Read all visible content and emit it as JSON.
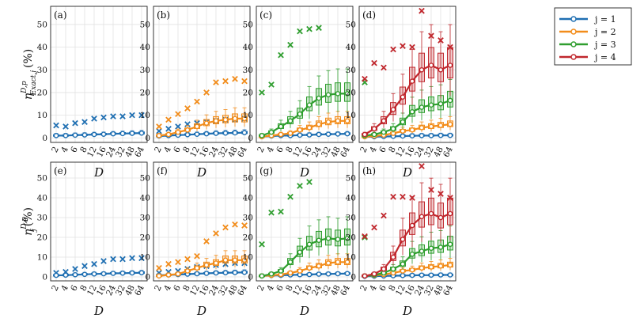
{
  "chart_data": {
    "type": "line",
    "ylim": [
      -2,
      58
    ],
    "yticks": [
      0,
      10,
      20,
      30,
      40,
      50
    ],
    "x": [
      "2",
      "4",
      "6",
      "8",
      "12",
      "16",
      "24",
      "32",
      "48",
      "64"
    ],
    "xlabel": "D",
    "colors": {
      "j1": "#1f6fb2",
      "j2": "#f28c1a",
      "j3": "#2f9e2f",
      "j4": "#c0272d"
    },
    "legend": [
      "j = 1",
      "j = 2",
      "j = 3",
      "j = 4"
    ],
    "rows": [
      {
        "ylabel": {
          "symbol": "η",
          "sup": "D,p",
          "sub": "Exact,j",
          "unit": "(%)"
        },
        "panels": [
          {
            "label": "(a)",
            "series": [
              {
                "key": "j1",
                "values": [
                  1.0,
                  1.0,
                  1.2,
                  1.3,
                  1.5,
                  1.6,
                  1.8,
                  1.9,
                  2.0,
                  2.1
                ],
                "outliers": [
                  5.5,
                  5.0,
                  6.5,
                  7.0,
                  8.5,
                  9.0,
                  9.5,
                  9.5,
                  10.0,
                  10.0
                ]
              }
            ]
          },
          {
            "label": "(b)",
            "series": [
              {
                "key": "j1",
                "values": [
                  0.8,
                  1.0,
                  1.2,
                  1.4,
                  1.6,
                  1.8,
                  2.0,
                  2.1,
                  2.2,
                  2.3
                ],
                "outliers": [
                  3.0,
                  4.0,
                  5.0,
                  6.0,
                  6.5,
                  7.0,
                  7.5,
                  8.0,
                  8.0,
                  8.5
                ]
              },
              {
                "key": "j2",
                "values": [
                  1.0,
                  1.5,
                  2.5,
                  3.5,
                  5.0,
                  6.5,
                  7.5,
                  8.0,
                  8.5,
                  8.5
                ],
                "outliers": [
                  5.0,
                  8.0,
                  10.5,
                  13.0,
                  16.0,
                  20.0,
                  24.5,
                  25.0,
                  26.0,
                  25.0
                ]
              }
            ]
          },
          {
            "label": "(c)",
            "series": [
              {
                "key": "j1",
                "values": [
                  0.5,
                  0.8,
                  1.0,
                  1.0,
                  1.2,
                  1.3,
                  1.5,
                  1.6,
                  1.7,
                  1.8
                ],
                "outliers": []
              },
              {
                "key": "j2",
                "values": [
                  0.5,
                  1.0,
                  1.5,
                  2.0,
                  3.5,
                  4.5,
                  6.0,
                  7.0,
                  7.5,
                  7.5
                ],
                "outliers": []
              },
              {
                "key": "j3",
                "values": [
                  1.0,
                  2.5,
                  5.0,
                  7.5,
                  10.5,
                  14.5,
                  17.5,
                  19.0,
                  19.5,
                  19.5
                ],
                "outliers": [
                  20.0,
                  23.5,
                  36.5,
                  41.0,
                  47.0,
                  48.0,
                  48.5
                ]
              }
            ]
          },
          {
            "label": "(d)",
            "series": [
              {
                "key": "j1",
                "values": [
                  0.5,
                  0.5,
                  0.6,
                  0.7,
                  0.8,
                  0.9,
                  1.0,
                  1.0,
                  1.1,
                  1.1
                ],
                "outliers": []
              },
              {
                "key": "j2",
                "values": [
                  0.5,
                  0.8,
                  1.2,
                  2.0,
                  3.0,
                  3.5,
                  4.5,
                  5.0,
                  5.5,
                  6.0
                ],
                "outliers": []
              },
              {
                "key": "j3",
                "values": [
                  1.0,
                  1.5,
                  2.5,
                  4.0,
                  7.0,
                  11.5,
                  13.5,
                  14.5,
                  15.0,
                  16.5
                ],
                "outliers": [
                  24.5
                ]
              },
              {
                "key": "j4",
                "values": [
                  1.5,
                  4.0,
                  7.5,
                  12.5,
                  18.0,
                  25.0,
                  30.0,
                  32.0,
                  30.0,
                  32.0
                ],
                "outliers": [
                  26.0,
                  33.0,
                  31.0,
                  39.0,
                  40.5,
                  40.0,
                  56.0,
                  45.0,
                  43.0,
                  40.0
                ]
              }
            ]
          }
        ]
      },
      {
        "ylabel": {
          "symbol": "η",
          "sup": "D,p",
          "sub": "j",
          "unit": "(%)"
        },
        "panels": [
          {
            "label": "(e)",
            "series": [
              {
                "key": "j1",
                "values": [
                  0.8,
                  0.9,
                  1.1,
                  1.3,
                  1.5,
                  1.6,
                  1.8,
                  1.9,
                  2.0,
                  2.1
                ],
                "outliers": [
                  2.0,
                  2.5,
                  4.0,
                  5.5,
                  6.5,
                  8.0,
                  9.0,
                  9.0,
                  9.5,
                  9.5
                ]
              }
            ]
          },
          {
            "label": "(f)",
            "series": [
              {
                "key": "j1",
                "values": [
                  0.8,
                  1.0,
                  1.2,
                  1.4,
                  1.6,
                  1.8,
                  2.0,
                  2.1,
                  2.2,
                  2.3
                ],
                "outliers": [
                  2.0,
                  2.5,
                  3.0,
                  4.0,
                  5.0,
                  5.5,
                  6.0,
                  6.5,
                  7.0,
                  7.0
                ]
              },
              {
                "key": "j2",
                "values": [
                  0.5,
                  1.0,
                  1.5,
                  3.0,
                  4.5,
                  6.0,
                  7.0,
                  8.5,
                  8.5,
                  8.5
                ],
                "outliers": [
                  4.5,
                  6.5,
                  7.5,
                  9.0,
                  10.5,
                  18.0,
                  22.0,
                  25.0,
                  26.5,
                  26.0
                ]
              }
            ]
          },
          {
            "label": "(g)",
            "series": [
              {
                "key": "j1",
                "values": [
                  0.5,
                  0.7,
                  0.8,
                  1.0,
                  1.1,
                  1.2,
                  1.4,
                  1.5,
                  1.6,
                  1.7
                ],
                "outliers": []
              },
              {
                "key": "j2",
                "values": [
                  0.5,
                  0.8,
                  1.2,
                  2.0,
                  3.0,
                  4.5,
                  5.5,
                  7.0,
                  7.5,
                  7.5
                ],
                "outliers": []
              },
              {
                "key": "j3",
                "values": [
                  0.5,
                  1.5,
                  3.0,
                  7.5,
                  12.5,
                  16.5,
                  18.5,
                  19.5,
                  19.0,
                  19.5
                ],
                "outliers": [
                  16.5,
                  32.5,
                  33.0,
                  40.5,
                  46.0,
                  48.0
                ]
              }
            ]
          },
          {
            "label": "(h)",
            "series": [
              {
                "key": "j1",
                "values": [
                  0.3,
                  0.4,
                  0.5,
                  0.6,
                  0.7,
                  0.8,
                  0.9,
                  0.9,
                  1.0,
                  1.0
                ],
                "outliers": []
              },
              {
                "key": "j2",
                "values": [
                  0.5,
                  0.8,
                  1.2,
                  2.0,
                  3.0,
                  3.5,
                  4.5,
                  5.0,
                  5.5,
                  6.0
                ],
                "outliers": []
              },
              {
                "key": "j3",
                "values": [
                  0.5,
                  1.0,
                  2.0,
                  4.0,
                  6.5,
                  11.5,
                  13.0,
                  14.5,
                  15.0,
                  16.5
                ],
                "outliers": [
                  20.0
                ]
              },
              {
                "key": "j4",
                "values": [
                  0.5,
                  1.5,
                  4.0,
                  10.0,
                  19.0,
                  26.0,
                  30.5,
                  32.0,
                  30.0,
                  32.0
                ],
                "outliers": [
                  20.5,
                  25.0,
                  31.0,
                  40.5,
                  40.5,
                  40.0,
                  56.0,
                  44.0,
                  42.0,
                  40.0
                ]
              }
            ]
          }
        ]
      }
    ]
  }
}
